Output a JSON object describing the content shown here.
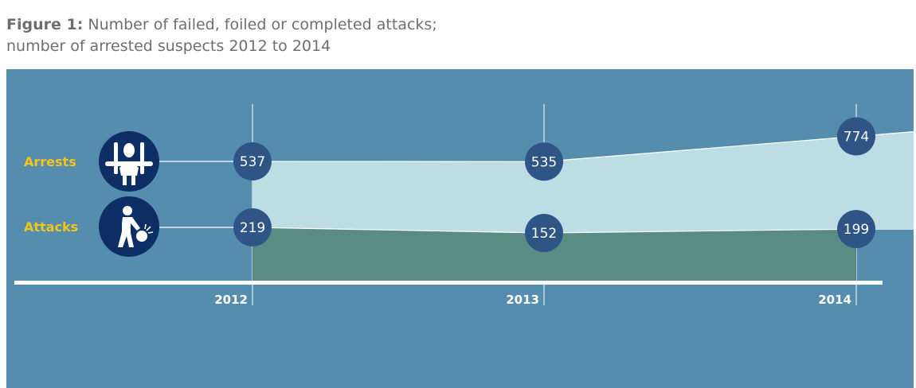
{
  "title": {
    "lead": "Figure 1:",
    "line1": "Number of failed, foiled or completed attacks;",
    "line2": "number of arrested suspects 2012 to 2014"
  },
  "colors": {
    "background": "#558daf",
    "arrests_band": "#bcdde4",
    "attacks_area": "#5a8c84",
    "bubble": "#2e5585",
    "icon_bg": "#0d2f66",
    "label": "#f5c518"
  },
  "icons": {
    "arrests": "handcuffed-person-icon",
    "attacks": "person-with-bomb-icon"
  },
  "chart_data": {
    "type": "area",
    "categories": [
      "2012",
      "2013",
      "2014"
    ],
    "series": [
      {
        "name": "Arrests",
        "values": [
          537,
          535,
          774
        ]
      },
      {
        "name": "Attacks",
        "values": [
          219,
          152,
          199
        ]
      }
    ],
    "grid": true
  }
}
